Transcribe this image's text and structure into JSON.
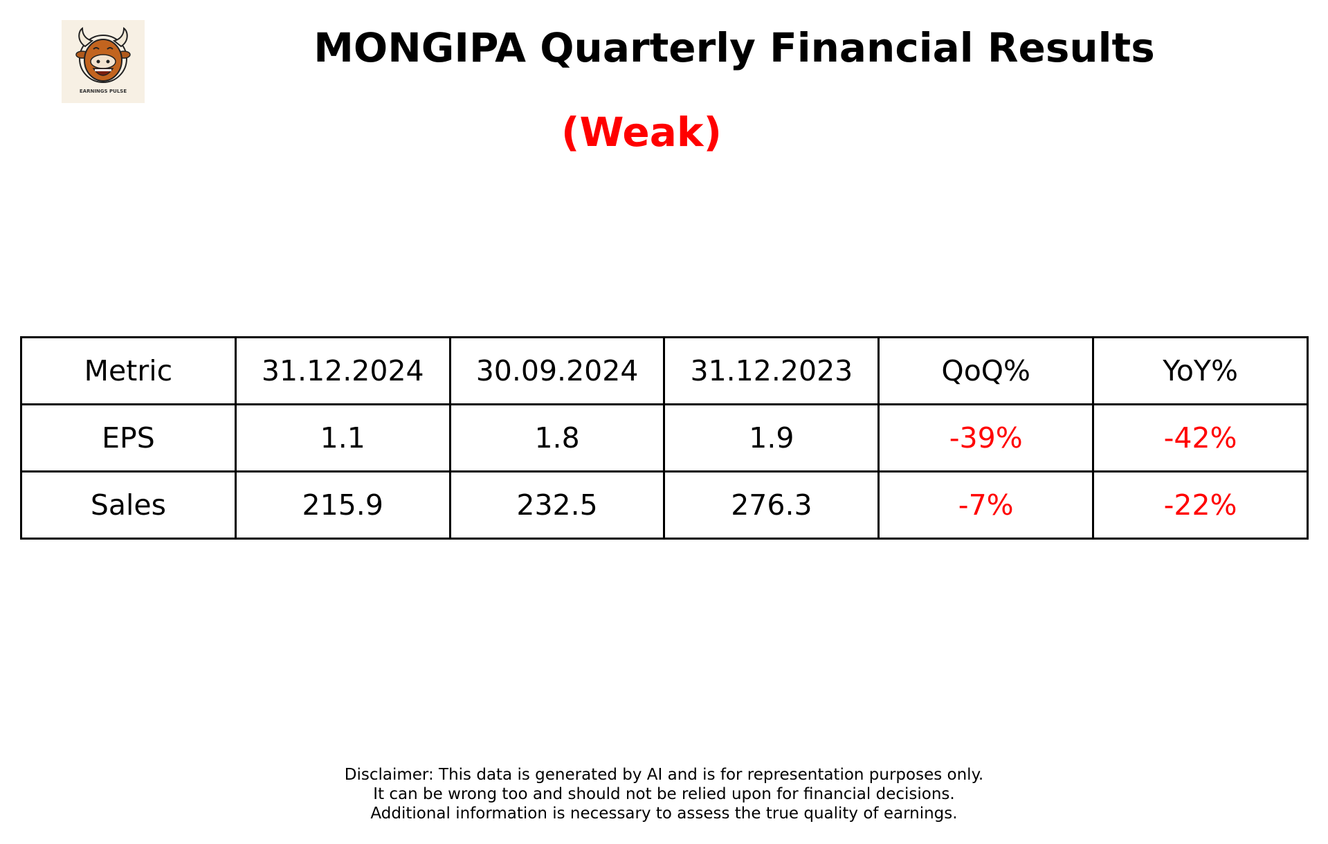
{
  "logo": {
    "text": "EARNINGS PULSE",
    "icon": "bull-mascot-icon"
  },
  "title": "MONGIPA Quarterly Financial Results",
  "rating": {
    "label": "(Weak)",
    "color": "#ff0000"
  },
  "table": {
    "headers": [
      "Metric",
      "31.12.2024",
      "30.09.2024",
      "31.12.2023",
      "QoQ%",
      "YoY%"
    ],
    "rows": [
      {
        "metric": "EPS",
        "q1": "1.1",
        "q2": "1.8",
        "q3": "1.9",
        "qoq": "-39%",
        "yoy": "-42%"
      },
      {
        "metric": "Sales",
        "q1": "215.9",
        "q2": "232.5",
        "q3": "276.3",
        "qoq": "-7%",
        "yoy": "-22%"
      }
    ],
    "negative_color": "#ff0000"
  },
  "disclaimer": [
    "Disclaimer: This data is generated by AI and is for representation purposes only.",
    "It can be wrong too and should not be relied upon for financial decisions.",
    "Additional information is necessary to assess the true quality of earnings."
  ]
}
